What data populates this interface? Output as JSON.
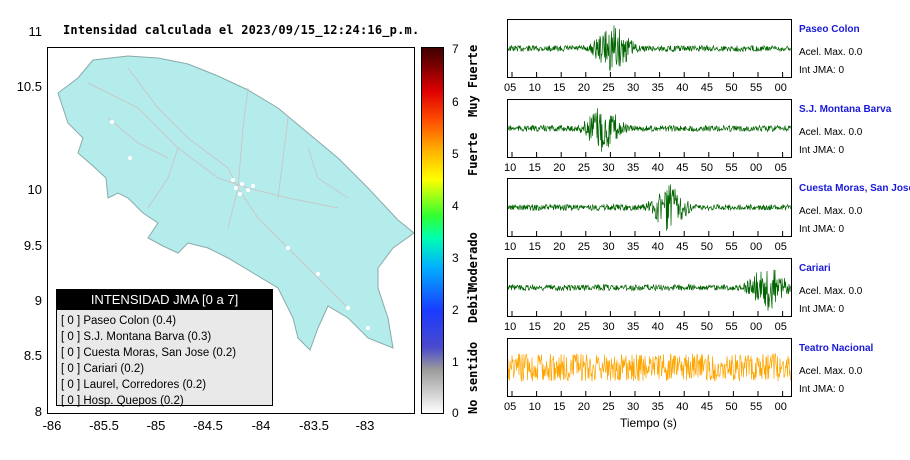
{
  "map": {
    "title": "Intensidad calculada el 2023/09/15_12:24:16_p.m.",
    "y_ticks": [
      "11",
      "10.5",
      "10",
      "9.5",
      "9",
      "8.5",
      "8"
    ],
    "x_ticks": [
      "-86",
      "-85.5",
      "-85",
      "-84.5",
      "-84",
      "-83.5",
      "-83"
    ]
  },
  "colorbar": {
    "ticks": [
      "7",
      "6",
      "5",
      "4",
      "3",
      "2",
      "1",
      "0"
    ],
    "labels": [
      "Muy Fuerte",
      "Fuerte",
      "Moderado",
      "Debil",
      "No sentido"
    ]
  },
  "legend": {
    "title": "INTENSIDAD JMA [0 a 7]",
    "items": [
      "[ 0 ]  Paseo Colon (0.4)",
      "[ 0 ]  S.J. Montana Barva (0.3)",
      "[ 0 ]  Cuesta Moras, San Jose (0.2)",
      "[ 0 ]  Cariari (0.2)",
      "[ 0 ]  Laurel, Corredores (0.2)",
      "[ 0 ]  Hosp. Quepos (0.2)"
    ]
  },
  "stations": [
    {
      "name": "Paseo Colon",
      "acel": "Acel. Max. 0.0",
      "int": "Int JMA: 0",
      "color": "#006400",
      "ticks": [
        "05",
        "10",
        "15",
        "20",
        "25",
        "30",
        "35",
        "40",
        "45",
        "50",
        "55",
        "00"
      ]
    },
    {
      "name": "S.J. Montana Barva",
      "acel": "Acel. Max. 0.0",
      "int": "Int JMA: 0",
      "color": "#006400",
      "ticks": [
        "10",
        "15",
        "20",
        "25",
        "30",
        "35",
        "40",
        "45",
        "50",
        "55",
        "00",
        "05"
      ]
    },
    {
      "name": "Cuesta Moras, San Jose",
      "acel": "Acel. Max. 0.0",
      "int": "Int JMA: 0",
      "color": "#006400",
      "ticks": [
        "10",
        "15",
        "20",
        "25",
        "30",
        "35",
        "40",
        "45",
        "50",
        "55",
        "00",
        "05"
      ]
    },
    {
      "name": "Cariari",
      "acel": "Acel. Max. 0.0",
      "int": "Int JMA: 0",
      "color": "#006400",
      "ticks": [
        "10",
        "15",
        "20",
        "25",
        "30",
        "35",
        "40",
        "45",
        "50",
        "55",
        "00",
        "05"
      ]
    },
    {
      "name": "Teatro Nacional",
      "acel": "Acel. Max. 0.0",
      "int": "Int JMA: 0",
      "color": "#ffa500",
      "ticks": [
        "05",
        "10",
        "15",
        "20",
        "25",
        "30",
        "35",
        "40",
        "45",
        "50",
        "55",
        "00"
      ]
    }
  ],
  "time_axis_label": "Tiempo (s)"
}
